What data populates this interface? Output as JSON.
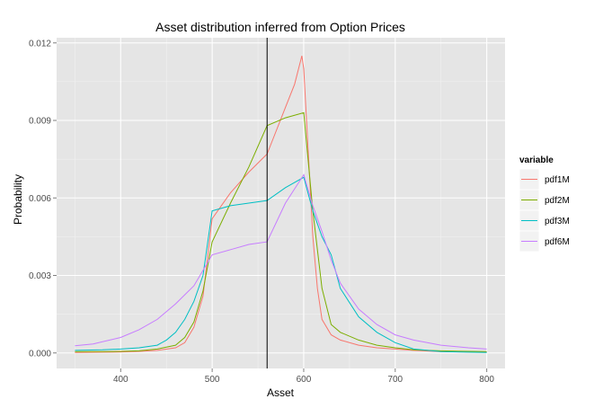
{
  "chart_data": {
    "type": "line",
    "title": "Asset distribution inferred from Option Prices",
    "xlabel": "Asset",
    "ylabel": "Probability",
    "xlim": [
      330,
      820
    ],
    "ylim": [
      -0.0006,
      0.0122
    ],
    "xticks": [
      400,
      500,
      600,
      700,
      800
    ],
    "xtick_labels": [
      "400",
      "500",
      "600",
      "700",
      "800"
    ],
    "yticks": [
      0.0,
      0.003,
      0.006,
      0.009,
      0.012
    ],
    "ytick_labels": [
      "0.000",
      "0.003",
      "0.006",
      "0.009",
      "0.012"
    ],
    "grid": true,
    "legend_position": "right",
    "legend_title": "variable",
    "vline_x": 560,
    "series": [
      {
        "name": "pdf1M",
        "color": "#F8766D",
        "points": [
          [
            350,
            2e-05
          ],
          [
            380,
            3e-05
          ],
          [
            400,
            4e-05
          ],
          [
            420,
            6e-05
          ],
          [
            440,
            0.0001
          ],
          [
            460,
            0.0002
          ],
          [
            470,
            0.0004
          ],
          [
            480,
            0.001
          ],
          [
            490,
            0.0022
          ],
          [
            500,
            0.0052
          ],
          [
            520,
            0.0062
          ],
          [
            540,
            0.007
          ],
          [
            560,
            0.0077
          ],
          [
            570,
            0.0086
          ],
          [
            580,
            0.0095
          ],
          [
            590,
            0.0104
          ],
          [
            598,
            0.0115
          ],
          [
            600,
            0.011
          ],
          [
            610,
            0.0045
          ],
          [
            615,
            0.0025
          ],
          [
            620,
            0.0013
          ],
          [
            630,
            0.0007
          ],
          [
            640,
            0.0005
          ],
          [
            660,
            0.0003
          ],
          [
            680,
            0.0002
          ],
          [
            700,
            0.00015
          ],
          [
            720,
            0.0001
          ],
          [
            750,
            5e-05
          ],
          [
            800,
            3e-05
          ]
        ]
      },
      {
        "name": "pdf2M",
        "color": "#7CAE00",
        "points": [
          [
            350,
            5e-05
          ],
          [
            380,
            5e-05
          ],
          [
            400,
            6e-05
          ],
          [
            420,
            8e-05
          ],
          [
            440,
            0.00015
          ],
          [
            460,
            0.0003
          ],
          [
            470,
            0.0006
          ],
          [
            480,
            0.0012
          ],
          [
            490,
            0.0024
          ],
          [
            500,
            0.0043
          ],
          [
            520,
            0.0058
          ],
          [
            540,
            0.0072
          ],
          [
            560,
            0.0088
          ],
          [
            580,
            0.0091
          ],
          [
            600,
            0.0093
          ],
          [
            610,
            0.0055
          ],
          [
            620,
            0.0025
          ],
          [
            630,
            0.0011
          ],
          [
            640,
            0.0008
          ],
          [
            660,
            0.0005
          ],
          [
            680,
            0.0003
          ],
          [
            700,
            0.0002
          ],
          [
            720,
            0.00012
          ],
          [
            750,
            8e-05
          ],
          [
            800,
            5e-05
          ]
        ]
      },
      {
        "name": "pdf3M",
        "color": "#00BFC4",
        "points": [
          [
            350,
            0.0001
          ],
          [
            380,
            0.00012
          ],
          [
            400,
            0.00015
          ],
          [
            420,
            0.0002
          ],
          [
            440,
            0.0003
          ],
          [
            450,
            0.0005
          ],
          [
            460,
            0.0008
          ],
          [
            470,
            0.0013
          ],
          [
            480,
            0.002
          ],
          [
            490,
            0.003
          ],
          [
            500,
            0.0055
          ],
          [
            520,
            0.0057
          ],
          [
            540,
            0.0058
          ],
          [
            560,
            0.0059
          ],
          [
            580,
            0.0064
          ],
          [
            600,
            0.0068
          ],
          [
            610,
            0.0055
          ],
          [
            620,
            0.0045
          ],
          [
            630,
            0.0038
          ],
          [
            640,
            0.0025
          ],
          [
            660,
            0.0014
          ],
          [
            680,
            0.0008
          ],
          [
            700,
            0.0004
          ],
          [
            720,
            0.00015
          ],
          [
            750,
            5e-05
          ],
          [
            800,
            2e-05
          ]
        ]
      },
      {
        "name": "pdf6M",
        "color": "#C77CFF",
        "points": [
          [
            350,
            0.00028
          ],
          [
            370,
            0.00035
          ],
          [
            400,
            0.0006
          ],
          [
            420,
            0.0009
          ],
          [
            440,
            0.0013
          ],
          [
            460,
            0.0019
          ],
          [
            480,
            0.0026
          ],
          [
            500,
            0.0038
          ],
          [
            520,
            0.004
          ],
          [
            540,
            0.0042
          ],
          [
            560,
            0.0043
          ],
          [
            580,
            0.0058
          ],
          [
            600,
            0.0069
          ],
          [
            610,
            0.0057
          ],
          [
            620,
            0.0047
          ],
          [
            630,
            0.0036
          ],
          [
            640,
            0.0027
          ],
          [
            660,
            0.0017
          ],
          [
            680,
            0.0011
          ],
          [
            700,
            0.0007
          ],
          [
            720,
            0.0005
          ],
          [
            750,
            0.0003
          ],
          [
            780,
            0.0002
          ],
          [
            800,
            0.00015
          ]
        ]
      }
    ]
  }
}
